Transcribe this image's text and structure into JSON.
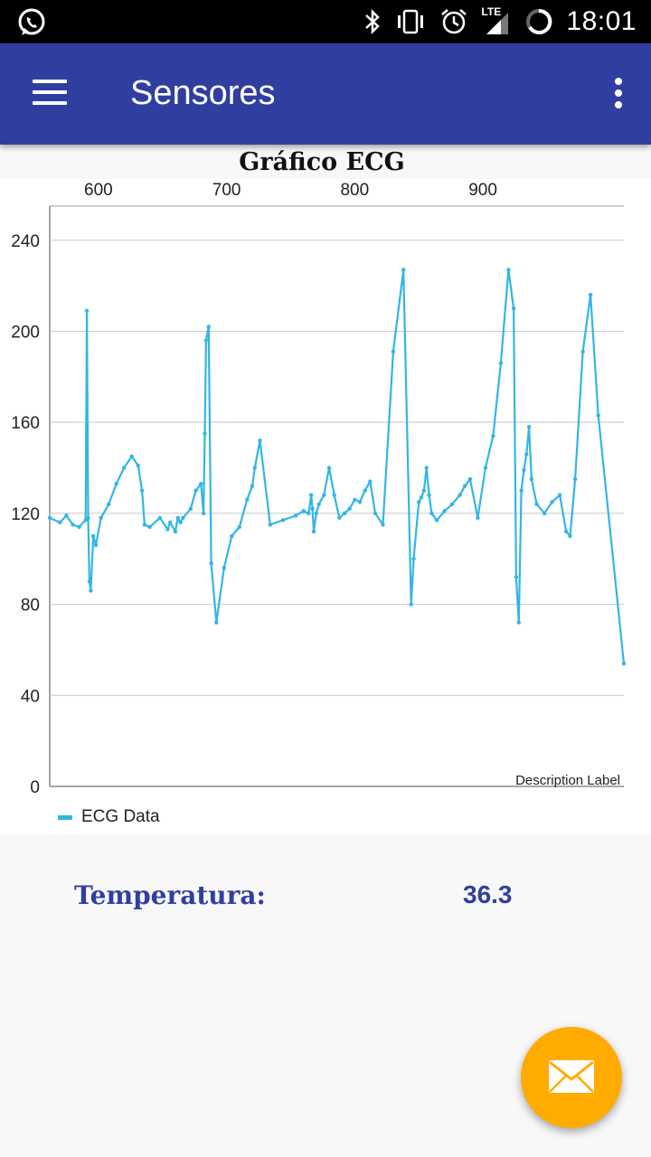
{
  "status_bar": {
    "time": "18:01",
    "network": "LTE",
    "icons": [
      "whatsapp-icon",
      "bluetooth-icon",
      "vibrate-icon",
      "alarm-icon",
      "signal-icon",
      "battery-icon"
    ]
  },
  "app_bar": {
    "title": "Sensores",
    "menu_icon": "hamburger-menu-icon",
    "overflow_icon": "more-vert-icon",
    "color": "#303f9f"
  },
  "chart_title": "Gráfico ECG",
  "chart_data": {
    "type": "line",
    "title": "Gráfico ECG",
    "xlabel": "",
    "ylabel": "",
    "description_label": "Description Label",
    "x_ticks": [
      "600",
      "700",
      "800",
      "900"
    ],
    "y_ticks": [
      "0",
      "40",
      "80",
      "120",
      "160",
      "200",
      "240"
    ],
    "xlim": [
      562,
      1010
    ],
    "ylim": [
      0,
      255
    ],
    "x_axis_position": "top",
    "grid": "horizontal",
    "legend": "bottom-left",
    "line_color": "#33b5e5",
    "series": [
      {
        "name": "ECG Data",
        "x": [
          562,
          570,
          575,
          580,
          585,
          590,
          591,
          592,
          593,
          594,
          596,
          598,
          602,
          608,
          614,
          620,
          626,
          631,
          634,
          636,
          640,
          648,
          654,
          656,
          660,
          662,
          664,
          666,
          672,
          676,
          680,
          682,
          683,
          684,
          686,
          688,
          692,
          698,
          704,
          710,
          716,
          720,
          722,
          726,
          734,
          744,
          754,
          760,
          764,
          766,
          767,
          768,
          770,
          772,
          776,
          780,
          784,
          788,
          792,
          796,
          800,
          804,
          808,
          812,
          816,
          822,
          830,
          838,
          844,
          846,
          850,
          852,
          854,
          856,
          858,
          860,
          864,
          870,
          876,
          882,
          886,
          890,
          896,
          902,
          908,
          914,
          920,
          924,
          926,
          928,
          930,
          932,
          934,
          936,
          938,
          942,
          948,
          954,
          960,
          965,
          968,
          972,
          978,
          984,
          990,
          1010
        ],
        "values": [
          118,
          116,
          119,
          115,
          114,
          117,
          209,
          118,
          90,
          86,
          110,
          106,
          118,
          124,
          133,
          140,
          145,
          141,
          130,
          115,
          114,
          118,
          113,
          116,
          112,
          118,
          116,
          118,
          122,
          130,
          133,
          120,
          155,
          196,
          202,
          98,
          72,
          96,
          110,
          114,
          126,
          132,
          140,
          152,
          115,
          117,
          119,
          121,
          120,
          128,
          122,
          112,
          120,
          124,
          128,
          140,
          128,
          118,
          120,
          122,
          126,
          125,
          130,
          134,
          120,
          115,
          191,
          227,
          80,
          100,
          125,
          127,
          130,
          140,
          128,
          120,
          117,
          121,
          124,
          128,
          132,
          135,
          118,
          140,
          154,
          186,
          227,
          210,
          92,
          72,
          130,
          139,
          146,
          158,
          135,
          124,
          120,
          125,
          128,
          112,
          110,
          135,
          191,
          216,
          163,
          54
        ]
      }
    ]
  },
  "temperature": {
    "label": "Temperatura:",
    "value": "36.3"
  },
  "fab": {
    "icon": "mail-icon",
    "color": "#ffab00"
  }
}
